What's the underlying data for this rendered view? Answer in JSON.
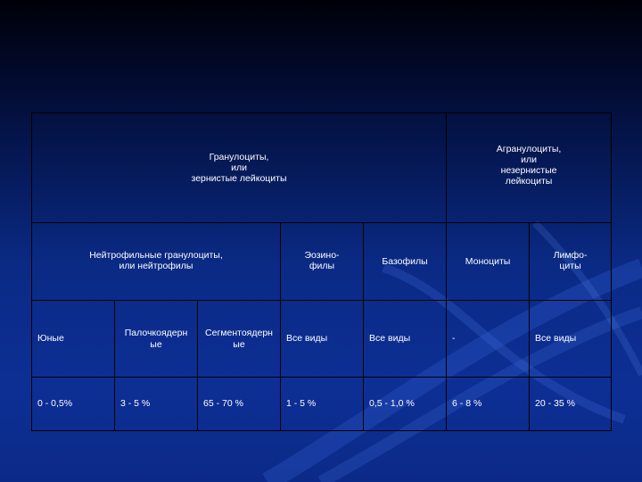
{
  "table": {
    "header1": {
      "granulocytes": "Гранулоциты,\nили\nзернистые лейкоциты",
      "agranulocytes": "Агранулоциты,\nили\nнезернистые\nлейкоциты"
    },
    "header2": {
      "neutrophils": "Нейтрофильные гранулоциты,\nили нейтрофилы",
      "eosinophils": "Эозино-\nфилы",
      "basophils": "Базофилы",
      "monocytes": "Моноциты",
      "lymphocytes": "Лимфо-\nциты"
    },
    "types_row": [
      "Юные",
      "Палочкоядерн\nые",
      "Сегментоядерн\nые",
      "Все виды",
      "Все виды",
      "-",
      "Все виды"
    ],
    "values_row": [
      "0 - 0,5%",
      "3 - 5 %",
      "65 - 70 %",
      "1 - 5 %",
      "0,5 - 1,0 %",
      "6 - 8 %",
      "20 - 35 %"
    ]
  }
}
